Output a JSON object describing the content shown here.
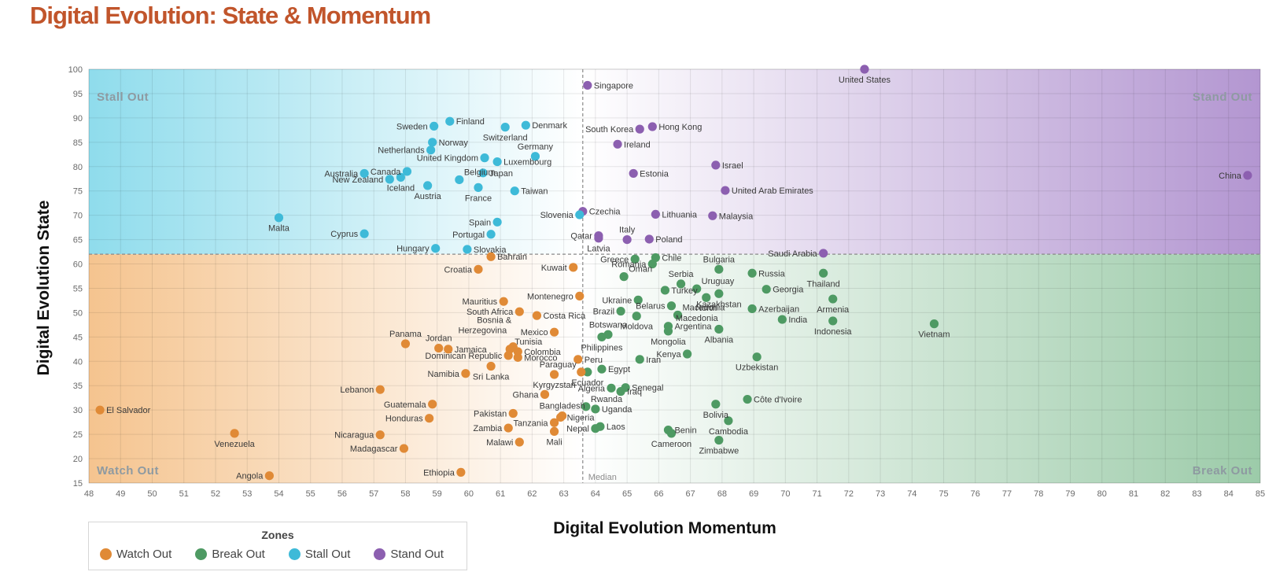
{
  "page": {
    "title": "Digital Evolution: State & Momentum"
  },
  "chart_data": {
    "type": "scatter",
    "title": "Digital Evolution: State & Momentum",
    "xlabel": "Digital Evolution Momentum",
    "ylabel": "Digital Evolution State",
    "xlim": [
      48,
      85
    ],
    "ylim": [
      15,
      100
    ],
    "x_ticks": [
      48,
      49,
      50,
      51,
      52,
      53,
      54,
      55,
      56,
      57,
      58,
      59,
      60,
      61,
      62,
      63,
      64,
      65,
      66,
      67,
      68,
      69,
      70,
      71,
      72,
      73,
      74,
      75,
      76,
      77,
      78,
      79,
      80,
      81,
      82,
      83,
      84,
      85
    ],
    "y_ticks": [
      15,
      20,
      25,
      30,
      35,
      40,
      45,
      50,
      55,
      60,
      65,
      70,
      75,
      80,
      85,
      90,
      95,
      100
    ],
    "grid": true,
    "median": {
      "x": 63.6,
      "y": 62,
      "label": "Median"
    },
    "zone_labels": {
      "top_left": "Stall Out",
      "top_right": "Stand Out",
      "bottom_left": "Watch Out",
      "bottom_right": "Break Out"
    },
    "legend": {
      "title": "Zones",
      "placement": "bottom-left",
      "entries": [
        {
          "key": "watch",
          "label": "Watch Out"
        },
        {
          "key": "break",
          "label": "Break Out"
        },
        {
          "key": "stall",
          "label": "Stall Out"
        },
        {
          "key": "stand",
          "label": "Stand Out"
        }
      ]
    },
    "colors": {
      "watch": "#e08a36",
      "break": "#4e9a63",
      "stall": "#3ebad8",
      "stand": "#8c5fb0"
    },
    "points": [
      {
        "name": "United States",
        "x": 72.5,
        "y": 100,
        "zone": "stand",
        "lp": "below"
      },
      {
        "name": "Singapore",
        "x": 63.75,
        "y": 96.7,
        "zone": "stand",
        "lp": "right"
      },
      {
        "name": "Hong Kong",
        "x": 65.8,
        "y": 88.2,
        "zone": "stand",
        "lp": "right"
      },
      {
        "name": "South Korea",
        "x": 65.4,
        "y": 87.7,
        "zone": "stand",
        "lp": "left"
      },
      {
        "name": "Ireland",
        "x": 64.7,
        "y": 84.6,
        "zone": "stand",
        "lp": "right"
      },
      {
        "name": "Israel",
        "x": 67.8,
        "y": 80.3,
        "zone": "stand",
        "lp": "right"
      },
      {
        "name": "Estonia",
        "x": 65.2,
        "y": 78.6,
        "zone": "stand",
        "lp": "right"
      },
      {
        "name": "United Arab Emirates",
        "x": 68.1,
        "y": 75.1,
        "zone": "stand",
        "lp": "right"
      },
      {
        "name": "China",
        "x": 84.6,
        "y": 78.2,
        "zone": "stand",
        "lp": "left"
      },
      {
        "name": "Czechia",
        "x": 63.6,
        "y": 70.8,
        "zone": "stand",
        "lp": "right"
      },
      {
        "name": "Lithuania",
        "x": 65.9,
        "y": 70.2,
        "zone": "stand",
        "lp": "right"
      },
      {
        "name": "Malaysia",
        "x": 67.7,
        "y": 69.9,
        "zone": "stand",
        "lp": "right"
      },
      {
        "name": "Qatar",
        "x": 64.1,
        "y": 65.8,
        "zone": "stand",
        "lp": "left"
      },
      {
        "name": "Italy",
        "x": 65,
        "y": 65,
        "zone": "stand",
        "lp": "above"
      },
      {
        "name": "Latvia",
        "x": 64.1,
        "y": 65.3,
        "zone": "stand",
        "lp": "below"
      },
      {
        "name": "Poland",
        "x": 65.7,
        "y": 65.1,
        "zone": "stand",
        "lp": "right"
      },
      {
        "name": "Saudi Arabia",
        "x": 71.2,
        "y": 62.2,
        "zone": "stand",
        "lp": "left"
      },
      {
        "name": "Finland",
        "x": 59.4,
        "y": 89.3,
        "zone": "stall",
        "lp": "right"
      },
      {
        "name": "Sweden",
        "x": 58.9,
        "y": 88.3,
        "zone": "stall",
        "lp": "left"
      },
      {
        "name": "Denmark",
        "x": 61.8,
        "y": 88.5,
        "zone": "stall",
        "lp": "right"
      },
      {
        "name": "Switzerland",
        "x": 61.15,
        "y": 88.1,
        "zone": "stall",
        "lp": "below"
      },
      {
        "name": "Norway",
        "x": 58.85,
        "y": 85,
        "zone": "stall",
        "lp": "right"
      },
      {
        "name": "Netherlands",
        "x": 58.8,
        "y": 83.4,
        "zone": "stall",
        "lp": "left"
      },
      {
        "name": "Germany",
        "x": 62.1,
        "y": 82.1,
        "zone": "stall",
        "lp": "above"
      },
      {
        "name": "United Kingdom",
        "x": 60.5,
        "y": 81.8,
        "zone": "stall",
        "lp": "left"
      },
      {
        "name": "Luxembourg",
        "x": 60.9,
        "y": 81,
        "zone": "stall",
        "lp": "right"
      },
      {
        "name": "Canada",
        "x": 58.05,
        "y": 79,
        "zone": "stall",
        "lp": "left"
      },
      {
        "name": "Australia",
        "x": 56.7,
        "y": 78.6,
        "zone": "stall",
        "lp": "left"
      },
      {
        "name": "Japan",
        "x": 60.45,
        "y": 78.7,
        "zone": "stall",
        "lp": "right"
      },
      {
        "name": "New Zealand",
        "x": 57.5,
        "y": 77.4,
        "zone": "stall",
        "lp": "left"
      },
      {
        "name": "Belgium",
        "x": 59.7,
        "y": 77.3,
        "zone": "stall",
        "lp": "right-up"
      },
      {
        "name": "Iceland",
        "x": 57.85,
        "y": 77.8,
        "zone": "stall",
        "lp": "below"
      },
      {
        "name": "Austria",
        "x": 58.7,
        "y": 76.1,
        "zone": "stall",
        "lp": "below"
      },
      {
        "name": "France",
        "x": 60.3,
        "y": 75.7,
        "zone": "stall",
        "lp": "below"
      },
      {
        "name": "Taiwan",
        "x": 61.45,
        "y": 75,
        "zone": "stall",
        "lp": "right"
      },
      {
        "name": "Slovenia",
        "x": 63.5,
        "y": 70.1,
        "zone": "stall",
        "lp": "left"
      },
      {
        "name": "Malta",
        "x": 54,
        "y": 69.5,
        "zone": "stall",
        "lp": "below"
      },
      {
        "name": "Spain",
        "x": 60.9,
        "y": 68.6,
        "zone": "stall",
        "lp": "left"
      },
      {
        "name": "Cyprus",
        "x": 56.7,
        "y": 66.2,
        "zone": "stall",
        "lp": "left"
      },
      {
        "name": "Portugal",
        "x": 60.7,
        "y": 66.1,
        "zone": "stall",
        "lp": "left"
      },
      {
        "name": "Hungary",
        "x": 58.95,
        "y": 63.2,
        "zone": "stall",
        "lp": "left"
      },
      {
        "name": "Slovakia",
        "x": 59.95,
        "y": 63,
        "zone": "stall",
        "lp": "right"
      },
      {
        "name": "Chile",
        "x": 65.9,
        "y": 61.3,
        "zone": "break",
        "lp": "right"
      },
      {
        "name": "Greece",
        "x": 65.25,
        "y": 61,
        "zone": "break",
        "lp": "left"
      },
      {
        "name": "Romania",
        "x": 65.8,
        "y": 60,
        "zone": "break",
        "lp": "left"
      },
      {
        "name": "Bulgaria",
        "x": 67.9,
        "y": 58.9,
        "zone": "break",
        "lp": "above"
      },
      {
        "name": "Russia",
        "x": 68.95,
        "y": 58.1,
        "zone": "break",
        "lp": "right"
      },
      {
        "name": "Thailand",
        "x": 71.2,
        "y": 58.1,
        "zone": "break",
        "lp": "below"
      },
      {
        "name": "Oman",
        "x": 64.9,
        "y": 57.4,
        "zone": "break",
        "lp": "right-up"
      },
      {
        "name": "Serbia",
        "x": 66.7,
        "y": 55.9,
        "zone": "break",
        "lp": "above"
      },
      {
        "name": "Uruguay",
        "x": 67.2,
        "y": 54.9,
        "zone": "break",
        "lp": "right-up"
      },
      {
        "name": "Georgia",
        "x": 69.4,
        "y": 54.8,
        "zone": "break",
        "lp": "right"
      },
      {
        "name": "Turkey",
        "x": 66.2,
        "y": 54.6,
        "zone": "break",
        "lp": "right"
      },
      {
        "name": "Kazakhstan",
        "x": 67.9,
        "y": 53.9,
        "zone": "break",
        "lp": "below"
      },
      {
        "name": "North Macedonia",
        "x": 67.5,
        "y": 53.1,
        "zone": "break",
        "lp": "below-ml"
      },
      {
        "name": "Ukraine",
        "x": 65.35,
        "y": 52.6,
        "zone": "break",
        "lp": "left"
      },
      {
        "name": "Armenia",
        "x": 71.5,
        "y": 52.8,
        "zone": "break",
        "lp": "below"
      },
      {
        "name": "Belarus",
        "x": 66.4,
        "y": 51.4,
        "zone": "break",
        "lp": "left"
      },
      {
        "name": "Azerbaijan",
        "x": 68.95,
        "y": 50.8,
        "zone": "break",
        "lp": "right"
      },
      {
        "name": "Brazil",
        "x": 64.8,
        "y": 50.3,
        "zone": "break",
        "lp": "left"
      },
      {
        "name": "Moldova",
        "x": 65.3,
        "y": 49.3,
        "zone": "break",
        "lp": "below"
      },
      {
        "name": "Macedonia",
        "x": 66.6,
        "y": 49.5,
        "zone": "break",
        "lp": "right-up"
      },
      {
        "name": "India",
        "x": 69.9,
        "y": 48.6,
        "zone": "break",
        "lp": "right"
      },
      {
        "name": "Indonesia",
        "x": 71.5,
        "y": 48.3,
        "zone": "break",
        "lp": "below"
      },
      {
        "name": "Vietnam",
        "x": 74.7,
        "y": 47.7,
        "zone": "break",
        "lp": "below"
      },
      {
        "name": "Argentina",
        "x": 66.3,
        "y": 47.2,
        "zone": "break",
        "lp": "right"
      },
      {
        "name": "Botswana",
        "x": 64.4,
        "y": 45.5,
        "zone": "break",
        "lp": "above"
      },
      {
        "name": "Albania",
        "x": 67.9,
        "y": 46.6,
        "zone": "break",
        "lp": "below"
      },
      {
        "name": "Mongolia",
        "x": 66.3,
        "y": 46.2,
        "zone": "break",
        "lp": "below"
      },
      {
        "name": "Philippines",
        "x": 64.2,
        "y": 45,
        "zone": "break",
        "lp": "below"
      },
      {
        "name": "Kenya",
        "x": 66.9,
        "y": 41.5,
        "zone": "break",
        "lp": "left"
      },
      {
        "name": "Uzbekistan",
        "x": 69.1,
        "y": 40.9,
        "zone": "break",
        "lp": "below"
      },
      {
        "name": "Iran",
        "x": 65.4,
        "y": 40.4,
        "zone": "break",
        "lp": "right"
      },
      {
        "name": "Egypt",
        "x": 64.2,
        "y": 38.4,
        "zone": "break",
        "lp": "right"
      },
      {
        "name": "Ecuador",
        "x": 63.75,
        "y": 37.8,
        "zone": "break",
        "lp": "below"
      },
      {
        "name": "Senegal",
        "x": 64.95,
        "y": 34.6,
        "zone": "break",
        "lp": "right"
      },
      {
        "name": "Algeria",
        "x": 64.5,
        "y": 34.5,
        "zone": "break",
        "lp": "left"
      },
      {
        "name": "Iraq",
        "x": 64.8,
        "y": 33.8,
        "zone": "break",
        "lp": "right"
      },
      {
        "name": "Côte d'Ivoire",
        "x": 68.8,
        "y": 32.2,
        "zone": "break",
        "lp": "right"
      },
      {
        "name": "Bolivia",
        "x": 67.8,
        "y": 31.2,
        "zone": "break",
        "lp": "below"
      },
      {
        "name": "Rwanda",
        "x": 63.7,
        "y": 30.7,
        "zone": "break",
        "lp": "right-up"
      },
      {
        "name": "Uganda",
        "x": 64,
        "y": 30.2,
        "zone": "break",
        "lp": "right"
      },
      {
        "name": "Cambodia",
        "x": 68.2,
        "y": 27.8,
        "zone": "break",
        "lp": "below"
      },
      {
        "name": "Laos",
        "x": 64.15,
        "y": 26.6,
        "zone": "break",
        "lp": "right"
      },
      {
        "name": "Nepal",
        "x": 64,
        "y": 26.2,
        "zone": "break",
        "lp": "left"
      },
      {
        "name": "Benin",
        "x": 66.3,
        "y": 25.9,
        "zone": "break",
        "lp": "right"
      },
      {
        "name": "Cameroon",
        "x": 66.4,
        "y": 25.2,
        "zone": "break",
        "lp": "below"
      },
      {
        "name": "Zimbabwe",
        "x": 67.9,
        "y": 23.8,
        "zone": "break",
        "lp": "below"
      },
      {
        "name": "Bahrain",
        "x": 60.7,
        "y": 61.5,
        "zone": "watch",
        "lp": "right"
      },
      {
        "name": "Kuwait",
        "x": 63.3,
        "y": 59.3,
        "zone": "watch",
        "lp": "left"
      },
      {
        "name": "Croatia",
        "x": 60.3,
        "y": 58.9,
        "zone": "watch",
        "lp": "left"
      },
      {
        "name": "Montenegro",
        "x": 63.5,
        "y": 53.4,
        "zone": "watch",
        "lp": "left"
      },
      {
        "name": "Mauritius",
        "x": 61.1,
        "y": 52.3,
        "zone": "watch",
        "lp": "left"
      },
      {
        "name": "South Africa",
        "x": 61.6,
        "y": 50.2,
        "zone": "watch",
        "lp": "left"
      },
      {
        "name": "Costa Rica",
        "x": 62.15,
        "y": 49.4,
        "zone": "watch",
        "lp": "right"
      },
      {
        "name": "Bosnia & Herzegovina",
        "x": 61.4,
        "y": 43,
        "zone": "watch",
        "lp": "bosnia"
      },
      {
        "name": "Mexico",
        "x": 62.7,
        "y": 46,
        "zone": "watch",
        "lp": "left"
      },
      {
        "name": "Panama",
        "x": 58,
        "y": 43.6,
        "zone": "watch",
        "lp": "above"
      },
      {
        "name": "Jordan",
        "x": 59.05,
        "y": 42.7,
        "zone": "watch",
        "lp": "above"
      },
      {
        "name": "Tunisia",
        "x": 61.3,
        "y": 42.5,
        "zone": "watch",
        "lp": "right-up"
      },
      {
        "name": "Jamaica",
        "x": 59.35,
        "y": 42.5,
        "zone": "watch",
        "lp": "right"
      },
      {
        "name": "Colombia",
        "x": 61.55,
        "y": 42,
        "zone": "watch",
        "lp": "right"
      },
      {
        "name": "Dominican Republic",
        "x": 61.25,
        "y": 41.2,
        "zone": "watch",
        "lp": "left"
      },
      {
        "name": "Morocco",
        "x": 61.55,
        "y": 40.8,
        "zone": "watch",
        "lp": "right"
      },
      {
        "name": "Peru",
        "x": 63.45,
        "y": 40.4,
        "zone": "watch",
        "lp": "right"
      },
      {
        "name": "Sri Lanka",
        "x": 60.7,
        "y": 39,
        "zone": "watch",
        "lp": "below"
      },
      {
        "name": "Paraguay",
        "x": 63.55,
        "y": 37.8,
        "zone": "watch",
        "lp": "left-up"
      },
      {
        "name": "Namibia",
        "x": 59.9,
        "y": 37.5,
        "zone": "watch",
        "lp": "left"
      },
      {
        "name": "Kyrgyzstan",
        "x": 62.7,
        "y": 37.3,
        "zone": "watch",
        "lp": "below"
      },
      {
        "name": "Lebanon",
        "x": 57.2,
        "y": 34.2,
        "zone": "watch",
        "lp": "left"
      },
      {
        "name": "Ghana",
        "x": 62.4,
        "y": 33.2,
        "zone": "watch",
        "lp": "left"
      },
      {
        "name": "Guatemala",
        "x": 58.85,
        "y": 31.2,
        "zone": "watch",
        "lp": "left"
      },
      {
        "name": "El Salvador",
        "x": 48.35,
        "y": 30,
        "zone": "watch",
        "lp": "right"
      },
      {
        "name": "Bangladesh",
        "x": 62.95,
        "y": 28.8,
        "zone": "watch",
        "lp": "above"
      },
      {
        "name": "Pakistan",
        "x": 61.4,
        "y": 29.3,
        "zone": "watch",
        "lp": "left"
      },
      {
        "name": "Nigeria",
        "x": 62.9,
        "y": 28.5,
        "zone": "watch",
        "lp": "right"
      },
      {
        "name": "Honduras",
        "x": 58.75,
        "y": 28.3,
        "zone": "watch",
        "lp": "left"
      },
      {
        "name": "Tanzania",
        "x": 62.7,
        "y": 27.4,
        "zone": "watch",
        "lp": "left"
      },
      {
        "name": "Zambia",
        "x": 61.25,
        "y": 26.3,
        "zone": "watch",
        "lp": "left"
      },
      {
        "name": "Mali",
        "x": 62.7,
        "y": 25.6,
        "zone": "watch",
        "lp": "below"
      },
      {
        "name": "Nicaragua",
        "x": 57.2,
        "y": 24.9,
        "zone": "watch",
        "lp": "left"
      },
      {
        "name": "Venezuela",
        "x": 52.6,
        "y": 25.2,
        "zone": "watch",
        "lp": "below"
      },
      {
        "name": "Malawi",
        "x": 61.6,
        "y": 23.4,
        "zone": "watch",
        "lp": "left"
      },
      {
        "name": "Madagascar",
        "x": 57.95,
        "y": 22.1,
        "zone": "watch",
        "lp": "left"
      },
      {
        "name": "Ethiopia",
        "x": 59.75,
        "y": 17.2,
        "zone": "watch",
        "lp": "left"
      },
      {
        "name": "Angola",
        "x": 53.7,
        "y": 16.5,
        "zone": "watch",
        "lp": "left"
      }
    ]
  }
}
